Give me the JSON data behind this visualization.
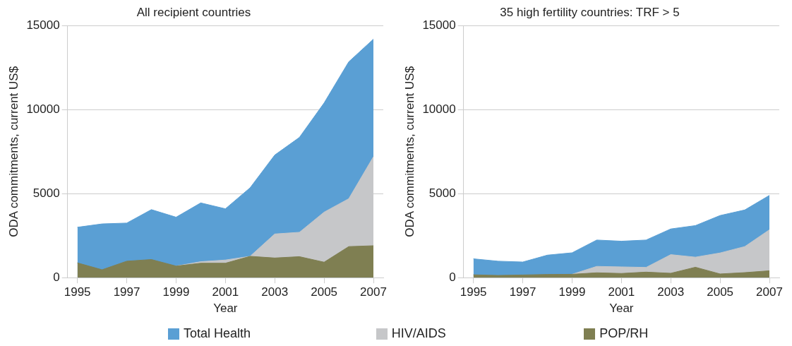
{
  "chart_data": [
    {
      "type": "area",
      "title": "All recipient countries",
      "xlabel": "Year",
      "ylabel": "ODA commitments, current US$",
      "x": [
        1995,
        1996,
        1997,
        1998,
        1999,
        2000,
        2001,
        2002,
        2003,
        2004,
        2005,
        2006,
        2007
      ],
      "xlim": [
        1994.6,
        2007.4
      ],
      "xticks": [
        1995,
        1997,
        1999,
        2001,
        2003,
        2005,
        2007
      ],
      "ylim": [
        0,
        15000
      ],
      "yticks": [
        0,
        5000,
        10000,
        15000
      ],
      "grid": "y",
      "legend": "bottom",
      "series": [
        {
          "name": "Total Health",
          "color": "#5a9fd4",
          "values": [
            3000,
            3200,
            3250,
            4050,
            3600,
            4450,
            4100,
            5350,
            7300,
            8350,
            10400,
            12850,
            14200
          ]
        },
        {
          "name": "HIV/AIDS",
          "color": "#c6c7c9",
          "values": [
            null,
            null,
            null,
            null,
            690,
            950,
            1050,
            1270,
            2600,
            2700,
            3900,
            4700,
            7200
          ]
        },
        {
          "name": "POP/RH",
          "color": "#7f7f52",
          "values": [
            880,
            470,
            980,
            1080,
            690,
            860,
            860,
            1270,
            1170,
            1250,
            920,
            1850,
            1900
          ]
        }
      ]
    },
    {
      "type": "area",
      "title": "35 high fertility countries: TRF > 5",
      "xlabel": "Year",
      "ylabel": "ODA commitments, current US$",
      "x": [
        1995,
        1996,
        1997,
        1998,
        1999,
        2000,
        2001,
        2002,
        2003,
        2004,
        2005,
        2006,
        2007
      ],
      "xlim": [
        1994.6,
        2007.4
      ],
      "xticks": [
        1995,
        1997,
        1999,
        2001,
        2003,
        2005,
        2007
      ],
      "ylim": [
        0,
        15000
      ],
      "yticks": [
        0,
        5000,
        10000,
        15000
      ],
      "grid": "y",
      "series": [
        {
          "color": "#5a9fd4",
          "values": [
            1120,
            980,
            930,
            1340,
            1480,
            2240,
            2170,
            2240,
            2900,
            3100,
            3700,
            4030,
            4900
          ]
        },
        {
          "color": "#c6c7c9",
          "values": [
            null,
            null,
            null,
            null,
            200,
            670,
            640,
            610,
            1370,
            1220,
            1470,
            1850,
            2850
          ]
        },
        {
          "color": "#7f7f52",
          "values": [
            170,
            130,
            160,
            190,
            200,
            290,
            250,
            330,
            260,
            620,
            220,
            300,
            410
          ]
        }
      ]
    }
  ]
}
